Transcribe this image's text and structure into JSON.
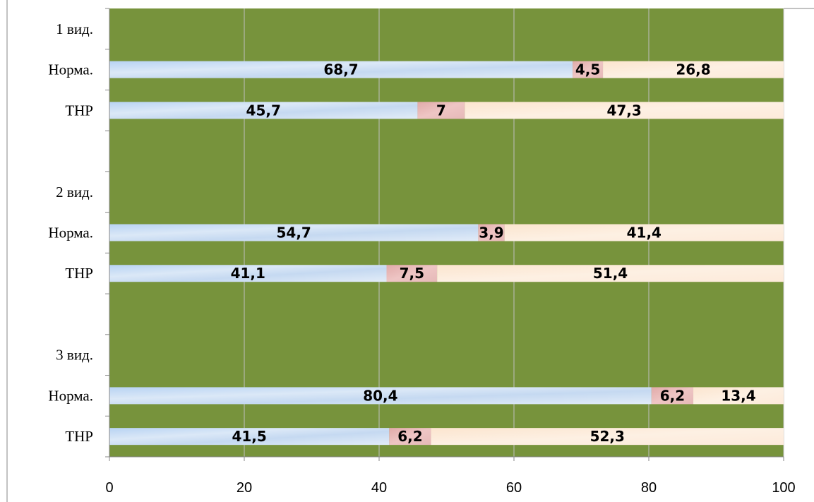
{
  "chart_data": {
    "type": "bar",
    "orientation": "horizontal",
    "stacked": true,
    "categories": [
      "1 вид.",
      "Норма.",
      "ТНР",
      "",
      "2 вид.",
      "Норма.",
      "ТНР",
      "",
      "3 вид.",
      "Норма.",
      "ТНР"
    ],
    "series": [
      {
        "values": [
          null,
          68.7,
          45.7,
          null,
          null,
          54.7,
          41.1,
          null,
          null,
          80.4,
          41.5
        ],
        "labels": [
          "",
          "68,7",
          "45,7",
          "",
          "",
          "54,7",
          "41,1",
          "",
          "",
          "80,4",
          "41,5"
        ]
      },
      {
        "values": [
          null,
          4.5,
          7,
          null,
          null,
          3.9,
          7.5,
          null,
          null,
          6.2,
          6.2
        ],
        "labels": [
          "",
          "4,5",
          "7",
          "",
          "",
          "3,9",
          "7,5",
          "",
          "",
          "6,2",
          "6,2"
        ]
      },
      {
        "values": [
          null,
          26.8,
          47.3,
          null,
          null,
          41.4,
          51.4,
          null,
          null,
          13.4,
          52.3
        ],
        "labels": [
          "",
          "26,8",
          "47,3",
          "",
          "",
          "41,4",
          "51,4",
          "",
          "",
          "13,4",
          "52,3"
        ]
      }
    ],
    "xticks": [
      "0",
      "20",
      "40",
      "60",
      "80",
      "100"
    ],
    "xlim": [
      0,
      100
    ],
    "grid": true,
    "colors": {
      "plot_background": "#77933c",
      "series": [
        "#c5d9f1",
        "#e6b9b8",
        "#fdeada"
      ],
      "axis": "#868686",
      "gridline": "#bfbfbf"
    }
  }
}
